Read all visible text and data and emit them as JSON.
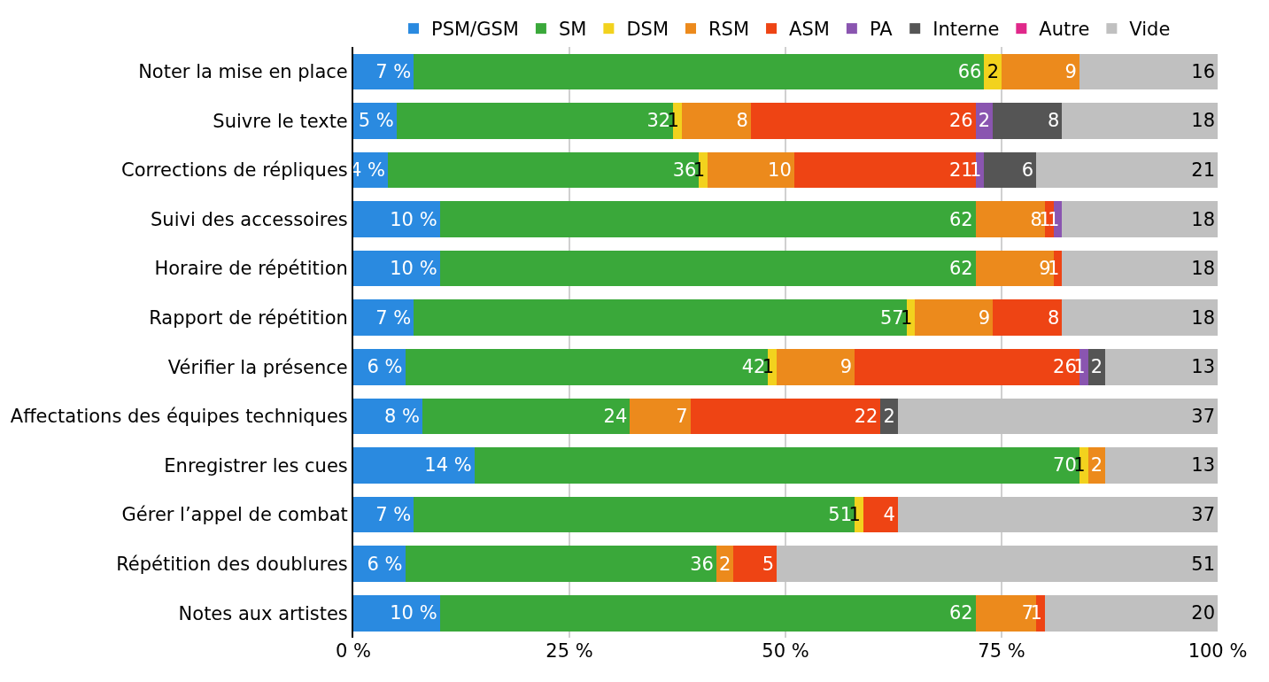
{
  "chart_data": {
    "type": "bar",
    "orientation": "horizontal",
    "stacked": true,
    "categories": [
      "Noter la mise en place",
      "Suivre le texte",
      "Corrections de répliques",
      "Suivi des accessoires",
      "Horaire de répétition",
      "Rapport de répétition",
      "Vérifier la présence",
      "Affectations des équipes techniques",
      "Enregistrer les cues",
      "Gérer l’appel de combat",
      "Répétition des doublures",
      "Notes aux artistes"
    ],
    "series": [
      {
        "name": "PSM/GSM",
        "color": "#2a8ae0",
        "values": [
          7,
          5,
          4,
          10,
          10,
          7,
          6,
          8,
          14,
          7,
          6,
          10
        ],
        "value_labels": [
          "7 %",
          "5 %",
          "4 %",
          "10 %",
          "10 %",
          "7 %",
          "6 %",
          "8 %",
          "14 %",
          "7 %",
          "6 %",
          "10 %"
        ]
      },
      {
        "name": "SM",
        "color": "#3aa83a",
        "values": [
          66,
          32,
          36,
          62,
          62,
          57,
          42,
          24,
          70,
          51,
          36,
          62
        ],
        "value_labels": [
          "66",
          "32",
          "36",
          "62",
          "62",
          "57",
          "42",
          "24",
          "70",
          "51",
          "36",
          "62"
        ]
      },
      {
        "name": "DSM",
        "color": "#f2d21e",
        "values": [
          2,
          1,
          1,
          null,
          null,
          1,
          1,
          null,
          1,
          1,
          null,
          null
        ],
        "value_labels": [
          "2",
          "1",
          "1",
          null,
          null,
          "1",
          "1",
          null,
          "1",
          "1",
          null,
          null
        ]
      },
      {
        "name": "RSM",
        "color": "#ec8a1c",
        "values": [
          9,
          8,
          10,
          8,
          9,
          9,
          9,
          7,
          2,
          null,
          2,
          7
        ],
        "value_labels": [
          "9",
          "8",
          "10",
          "8",
          "9",
          "9",
          "9",
          "7",
          "2",
          null,
          "2",
          "7"
        ]
      },
      {
        "name": "ASM",
        "color": "#ee4414",
        "values": [
          null,
          26,
          21,
          1,
          1,
          8,
          26,
          22,
          null,
          4,
          5,
          1
        ],
        "value_labels": [
          null,
          "26",
          "21",
          "1",
          "1",
          "8",
          "26",
          "22",
          null,
          "4",
          "5",
          "1"
        ]
      },
      {
        "name": "PA",
        "color": "#8a55b0",
        "values": [
          null,
          2,
          1,
          1,
          null,
          null,
          1,
          null,
          null,
          null,
          null,
          null
        ],
        "value_labels": [
          null,
          "2",
          "1",
          "1",
          null,
          null,
          "1",
          null,
          null,
          null,
          null,
          null
        ]
      },
      {
        "name": "Interne",
        "color": "#555555",
        "values": [
          null,
          8,
          6,
          null,
          null,
          null,
          2,
          2,
          null,
          null,
          null,
          null
        ],
        "value_labels": [
          null,
          "8",
          "6",
          null,
          null,
          null,
          "2",
          "2",
          null,
          null,
          null,
          null
        ]
      },
      {
        "name": "Autre",
        "color": "#e0288a",
        "values": [
          null,
          null,
          null,
          null,
          null,
          null,
          null,
          null,
          null,
          null,
          null,
          null
        ]
      },
      {
        "name": "Vide",
        "color": "#c0c0c0",
        "values": [
          16,
          18,
          21,
          18,
          18,
          18,
          13,
          37,
          13,
          37,
          51,
          20
        ],
        "value_labels": [
          "16",
          "18",
          "21",
          "18",
          "18",
          "18",
          "13",
          "37",
          "13",
          "37",
          "51",
          "20"
        ]
      }
    ],
    "xlim": [
      0,
      100
    ],
    "xticks": [
      {
        "value": 0,
        "label": "0 %"
      },
      {
        "value": 25,
        "label": "25 %"
      },
      {
        "value": 50,
        "label": "50 %"
      },
      {
        "value": 75,
        "label": "75 %"
      },
      {
        "value": 100,
        "label": "100 %"
      }
    ],
    "grid": "x",
    "legend": "top"
  }
}
